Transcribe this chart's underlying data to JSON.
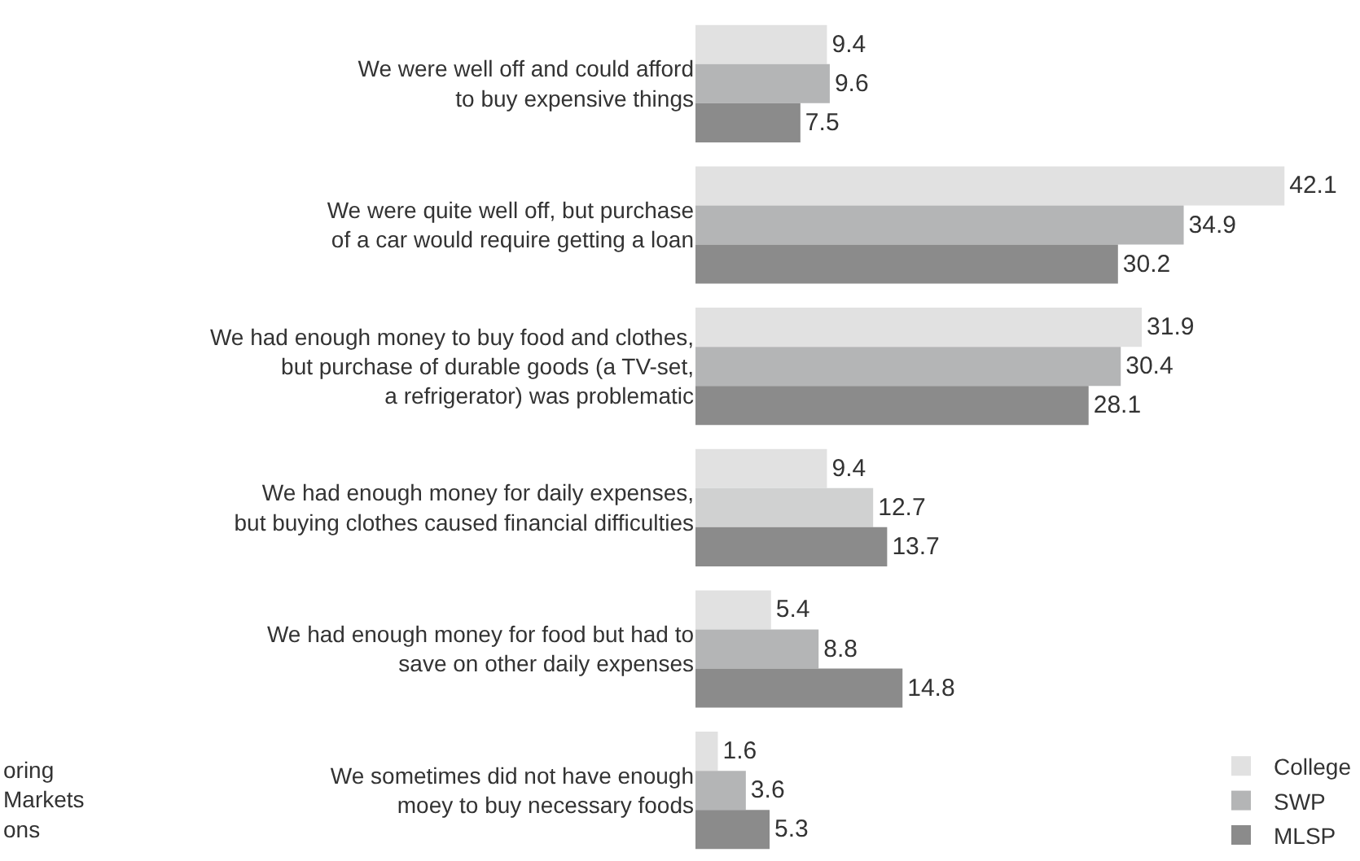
{
  "chart_data": {
    "type": "bar",
    "orientation": "horizontal",
    "categories": [
      "We were well off and could afford\nto buy expensive things",
      "We were quite well off, but purchase\nof a car would require getting a loan",
      "We had enough money to buy food and clothes,\nbut purchase of durable goods (a TV-set,\na refrigerator) was problematic",
      "We had enough money for daily expenses,\nbut buying clothes caused financial difficulties",
      "We had enough money for food but had to\nsave on other daily expenses",
      "We sometimes did not have enough\nmoey to buy necessary foods"
    ],
    "series": [
      {
        "name": "College",
        "color": "#e1e1e1",
        "values": [
          9.4,
          42.1,
          31.9,
          9.4,
          5.4,
          1.6
        ]
      },
      {
        "name": "SWP",
        "color": "#b4b5b6",
        "colors": [
          "#b4b5b6",
          "#b4b5b6",
          "#b4b5b6",
          "#d0d1d1",
          "#b4b5b6",
          "#b4b5b6"
        ],
        "values": [
          9.6,
          34.9,
          30.4,
          12.7,
          8.8,
          3.6
        ]
      },
      {
        "name": "MLSP",
        "color": "#8b8b8b",
        "values": [
          7.5,
          30.2,
          28.1,
          13.7,
          14.8,
          5.3
        ]
      }
    ],
    "xlim": [
      0,
      47.5
    ],
    "tick_labels": "y",
    "data_labels": true,
    "legend": "bottom right",
    "annotations": [
      "oring\nMarkets\nons"
    ]
  }
}
